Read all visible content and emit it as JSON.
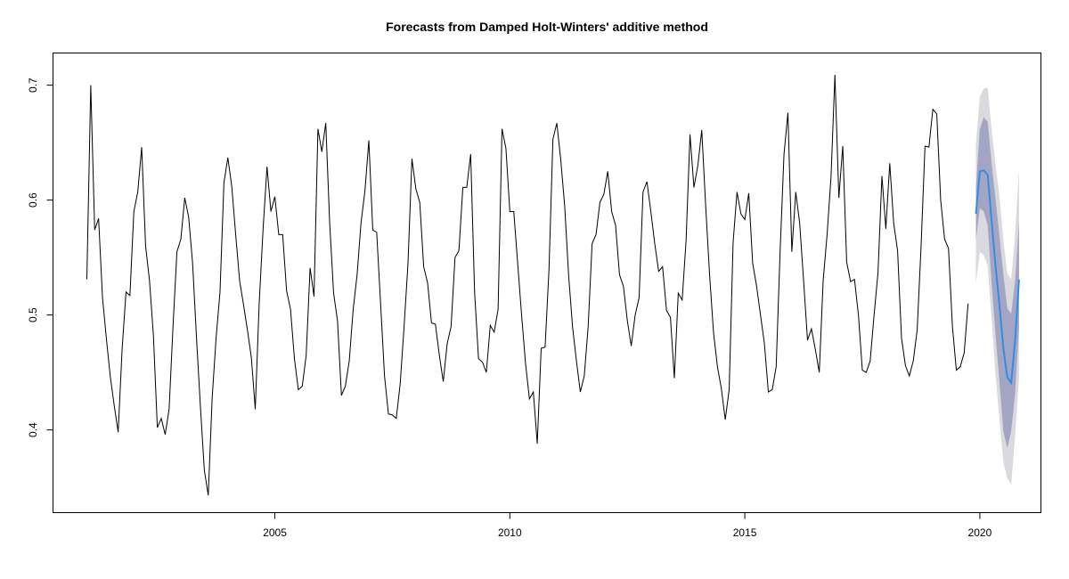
{
  "chart_data": {
    "type": "line",
    "title": "Forecasts from Damped Holt-Winters' additive method",
    "xlabel": "",
    "ylabel": "",
    "xlim": [
      2000.28,
      2021.3
    ],
    "ylim": [
      0.328,
      0.728
    ],
    "x_ticks": [
      2005,
      2010,
      2015,
      2020
    ],
    "x_tick_labels": [
      "2005",
      "2010",
      "2015",
      "2020"
    ],
    "y_ticks": [
      0.4,
      0.5,
      0.6,
      0.7
    ],
    "y_tick_labels": [
      "0.4",
      "0.5",
      "0.6",
      "0.7"
    ],
    "grid": false,
    "legend": false,
    "colors": {
      "observed": "#000000",
      "forecast": "#2e8ee6",
      "band_80": "#a4a4c4",
      "band_95": "#d9d9de",
      "axis": "#000000"
    },
    "series": [
      {
        "role": "observed",
        "start": 2001.0,
        "frequency": 12,
        "values": [
          0.531,
          0.7,
          0.574,
          0.584,
          0.515,
          0.479,
          0.446,
          0.421,
          0.398,
          0.47,
          0.52,
          0.517,
          0.59,
          0.607,
          0.646,
          0.56,
          0.53,
          0.482,
          0.402,
          0.41,
          0.396,
          0.418,
          0.49,
          0.555,
          0.566,
          0.602,
          0.585,
          0.545,
          0.48,
          0.42,
          0.365,
          0.343,
          0.428,
          0.48,
          0.52,
          0.615,
          0.637,
          0.612,
          0.57,
          0.53,
          0.509,
          0.487,
          0.463,
          0.418,
          0.51,
          0.575,
          0.629,
          0.59,
          0.603,
          0.57,
          0.57,
          0.521,
          0.505,
          0.462,
          0.435,
          0.438,
          0.465,
          0.541,
          0.516,
          0.662,
          0.642,
          0.667,
          0.58,
          0.519,
          0.495,
          0.43,
          0.438,
          0.46,
          0.505,
          0.535,
          0.58,
          0.608,
          0.652,
          0.574,
          0.572,
          0.51,
          0.447,
          0.414,
          0.413,
          0.41,
          0.44,
          0.49,
          0.545,
          0.636,
          0.61,
          0.598,
          0.542,
          0.528,
          0.493,
          0.492,
          0.465,
          0.442,
          0.475,
          0.49,
          0.55,
          0.556,
          0.611,
          0.611,
          0.64,
          0.52,
          0.462,
          0.459,
          0.45,
          0.491,
          0.485,
          0.505,
          0.662,
          0.645,
          0.59,
          0.59,
          0.545,
          0.5,
          0.458,
          0.427,
          0.433,
          0.388,
          0.471,
          0.472,
          0.54,
          0.653,
          0.667,
          0.635,
          0.595,
          0.535,
          0.49,
          0.46,
          0.433,
          0.447,
          0.49,
          0.562,
          0.57,
          0.598,
          0.605,
          0.625,
          0.59,
          0.578,
          0.535,
          0.525,
          0.495,
          0.473,
          0.5,
          0.515,
          0.607,
          0.616,
          0.59,
          0.562,
          0.538,
          0.542,
          0.504,
          0.498,
          0.445,
          0.519,
          0.513,
          0.565,
          0.657,
          0.611,
          0.63,
          0.661,
          0.595,
          0.535,
          0.485,
          0.455,
          0.436,
          0.409,
          0.435,
          0.563,
          0.607,
          0.588,
          0.583,
          0.606,
          0.545,
          0.525,
          0.5,
          0.475,
          0.433,
          0.435,
          0.455,
          0.555,
          0.64,
          0.676,
          0.555,
          0.607,
          0.58,
          0.53,
          0.478,
          0.488,
          0.47,
          0.45,
          0.53,
          0.57,
          0.62,
          0.709,
          0.602,
          0.647,
          0.546,
          0.529,
          0.531,
          0.5,
          0.452,
          0.45,
          0.46,
          0.5,
          0.537,
          0.621,
          0.575,
          0.632,
          0.58,
          0.556,
          0.48,
          0.456,
          0.447,
          0.46,
          0.487,
          0.56,
          0.647,
          0.646,
          0.679,
          0.675,
          0.6,
          0.566,
          0.558,
          0.49,
          0.452,
          0.455,
          0.467,
          0.51
        ]
      },
      {
        "role": "forecast",
        "start": 2019.917,
        "frequency": 12,
        "point": [
          0.588,
          0.625,
          0.626,
          0.622,
          0.582,
          0.543,
          0.509,
          0.471,
          0.446,
          0.441,
          0.478,
          0.531
        ],
        "lo80": [
          0.565,
          0.593,
          0.59,
          0.578,
          0.528,
          0.483,
          0.442,
          0.399,
          0.384,
          0.399,
          0.432,
          0.489
        ],
        "hi80": [
          0.611,
          0.662,
          0.672,
          0.668,
          0.632,
          0.601,
          0.569,
          0.535,
          0.506,
          0.501,
          0.53,
          0.581
        ],
        "lo95": [
          0.527,
          0.555,
          0.552,
          0.543,
          0.497,
          0.448,
          0.409,
          0.372,
          0.358,
          0.352,
          0.395,
          0.446
        ],
        "hi95": [
          0.649,
          0.69,
          0.697,
          0.698,
          0.661,
          0.631,
          0.604,
          0.566,
          0.536,
          0.531,
          0.57,
          0.627
        ]
      }
    ]
  }
}
